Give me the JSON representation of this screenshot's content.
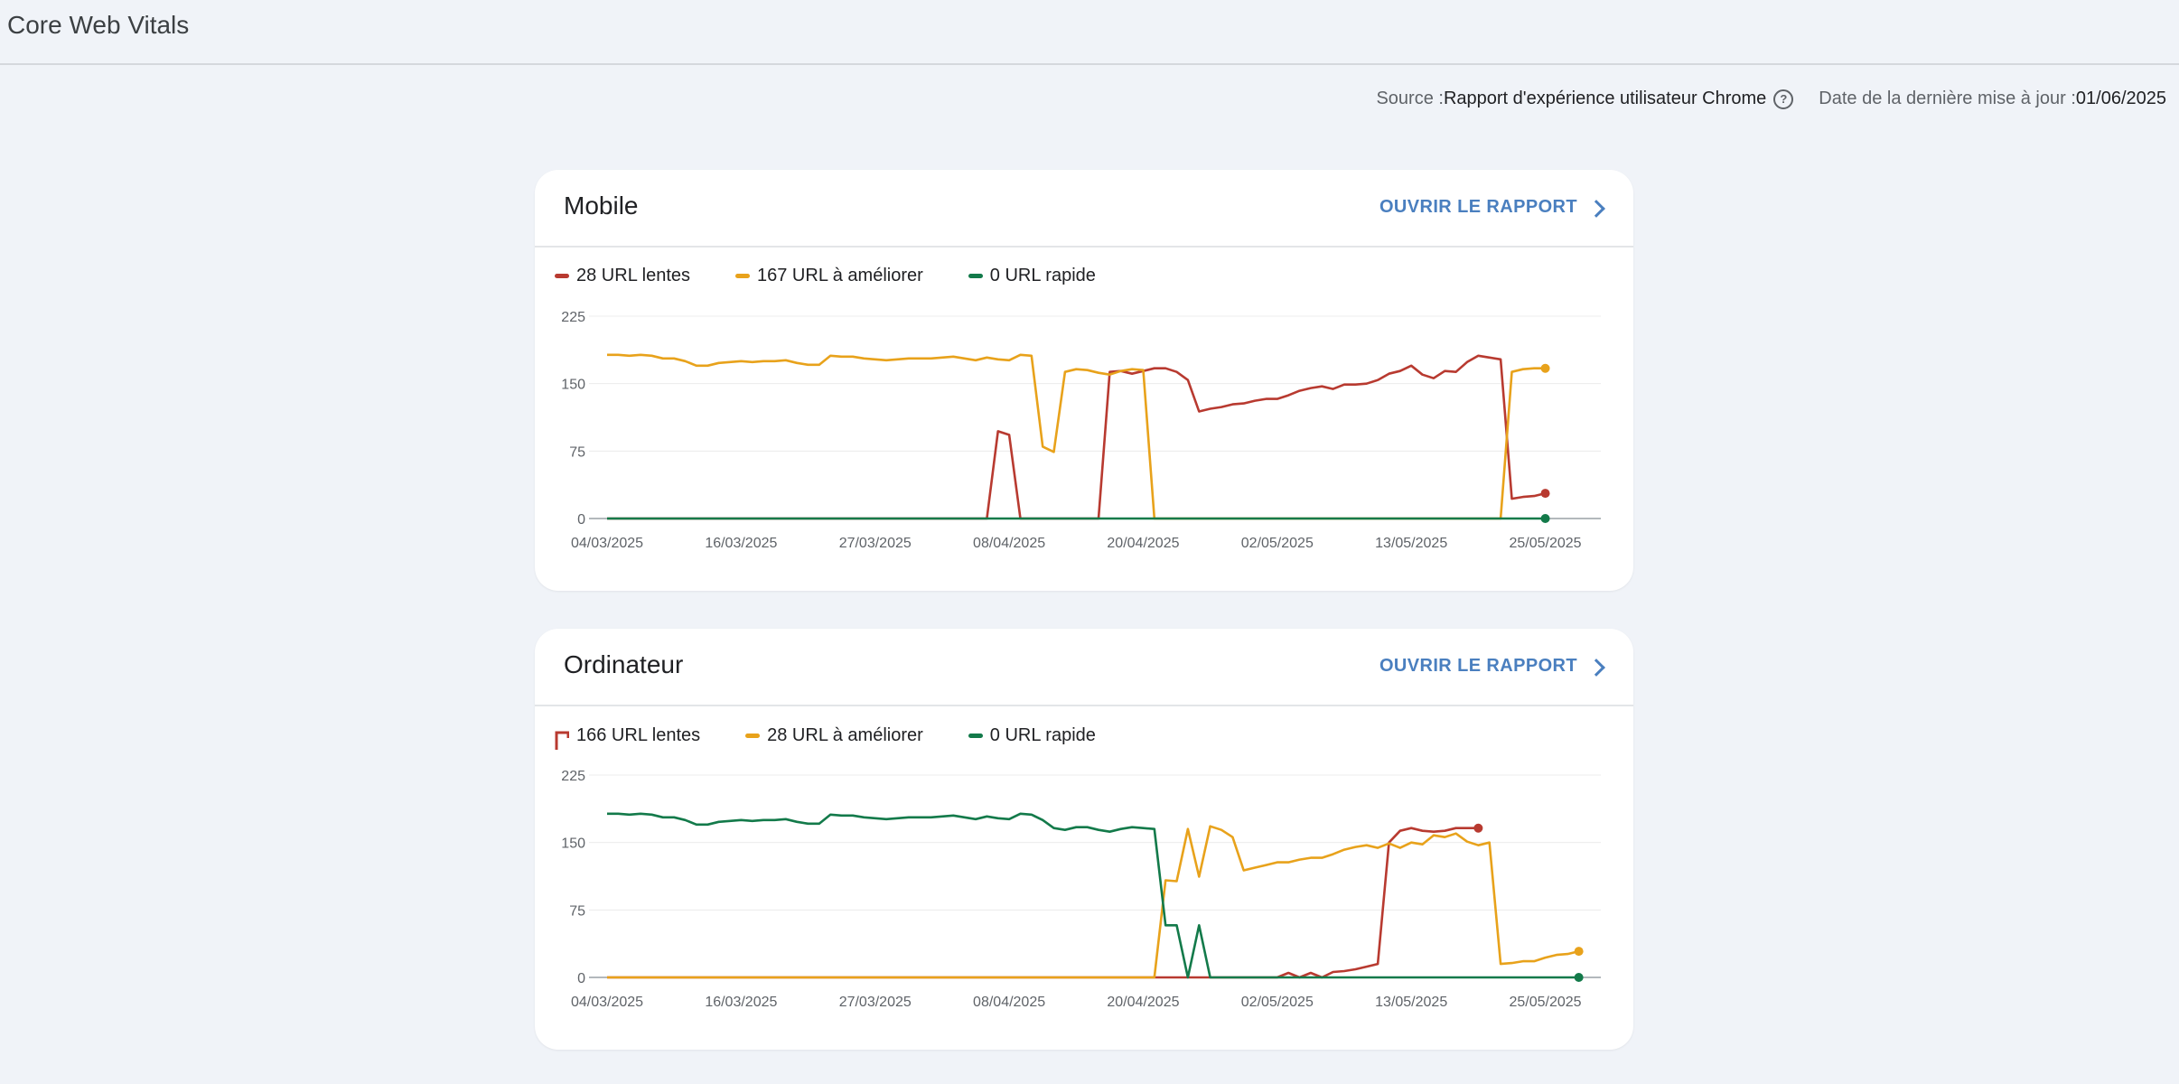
{
  "page": {
    "title": "Core Web Vitals",
    "source_label": "Source : ",
    "source_value": "Rapport d'expérience utilisateur Chrome",
    "help_icon": "help-circle-icon",
    "updated_label": "Date de la dernière mise à jour : ",
    "updated_value": "01/06/2025"
  },
  "colors": {
    "slow": "#b83a30",
    "improve": "#e8a21b",
    "fast": "#137a4a",
    "grid": "#ececec",
    "axis": "#9aa0a6"
  },
  "cards": [
    {
      "title": "Mobile",
      "open_report": "OUVRIR LE RAPPORT",
      "legend": [
        {
          "label": "28 URL lentes",
          "series": "slow"
        },
        {
          "label": "167 URL à améliorer",
          "series": "improve"
        },
        {
          "label": "0 URL rapide",
          "series": "fast"
        }
      ]
    },
    {
      "title": "Ordinateur",
      "open_report": "OUVRIR LE RAPPORT",
      "legend": [
        {
          "label": "166 URL lentes",
          "series": "slow"
        },
        {
          "label": "28 URL à améliorer",
          "series": "improve"
        },
        {
          "label": "0 URL rapide",
          "series": "fast"
        }
      ]
    }
  ],
  "chart_data": [
    {
      "type": "line",
      "x_start": "04/03/2025",
      "x_end": "31/05/2025",
      "x_tick_labels": [
        "04/03/2025",
        "16/03/2025",
        "27/03/2025",
        "08/04/2025",
        "20/04/2025",
        "02/05/2025",
        "13/05/2025",
        "25/05/2025"
      ],
      "y_ticks": [
        0,
        75,
        150,
        225
      ],
      "ylim": [
        0,
        225
      ],
      "grid": true,
      "legend_placement": "top-left",
      "series": [
        {
          "key": "slow",
          "name": "28 URL lentes",
          "points": [
            [
              0,
              0
            ],
            [
              34,
              0
            ],
            [
              35,
              97
            ],
            [
              36,
              93
            ],
            [
              37,
              0
            ],
            [
              44,
              0
            ],
            [
              45,
              163
            ],
            [
              46,
              164
            ],
            [
              47,
              161
            ],
            [
              48,
              164
            ],
            [
              49,
              167
            ],
            [
              50,
              167
            ],
            [
              51,
              163
            ],
            [
              52,
              154
            ],
            [
              53,
              119
            ],
            [
              54,
              122
            ],
            [
              55,
              124
            ],
            [
              56,
              127
            ],
            [
              57,
              128
            ],
            [
              58,
              131
            ],
            [
              59,
              133
            ],
            [
              60,
              133
            ],
            [
              61,
              137
            ],
            [
              62,
              142
            ],
            [
              63,
              145
            ],
            [
              64,
              147
            ],
            [
              65,
              144
            ],
            [
              66,
              149
            ],
            [
              67,
              149
            ],
            [
              68,
              150
            ],
            [
              69,
              154
            ],
            [
              70,
              161
            ],
            [
              71,
              164
            ],
            [
              72,
              170
            ],
            [
              73,
              160
            ],
            [
              74,
              156
            ],
            [
              75,
              164
            ],
            [
              76,
              163
            ],
            [
              77,
              174
            ],
            [
              78,
              181
            ],
            [
              79,
              179
            ],
            [
              80,
              177
            ],
            [
              81,
              22
            ],
            [
              82,
              24
            ],
            [
              83,
              25
            ],
            [
              84,
              28
            ]
          ]
        },
        {
          "key": "improve",
          "name": "167 URL à améliorer",
          "points": [
            [
              0,
              182
            ],
            [
              1,
              182
            ],
            [
              2,
              181
            ],
            [
              3,
              182
            ],
            [
              4,
              181
            ],
            [
              5,
              178
            ],
            [
              6,
              178
            ],
            [
              7,
              175
            ],
            [
              8,
              170
            ],
            [
              9,
              170
            ],
            [
              10,
              173
            ],
            [
              11,
              174
            ],
            [
              12,
              175
            ],
            [
              13,
              174
            ],
            [
              14,
              175
            ],
            [
              15,
              175
            ],
            [
              16,
              176
            ],
            [
              17,
              173
            ],
            [
              18,
              171
            ],
            [
              19,
              171
            ],
            [
              20,
              181
            ],
            [
              21,
              180
            ],
            [
              22,
              180
            ],
            [
              23,
              178
            ],
            [
              24,
              177
            ],
            [
              25,
              176
            ],
            [
              26,
              177
            ],
            [
              27,
              178
            ],
            [
              28,
              178
            ],
            [
              29,
              178
            ],
            [
              30,
              179
            ],
            [
              31,
              180
            ],
            [
              32,
              178
            ],
            [
              33,
              176
            ],
            [
              34,
              179
            ],
            [
              35,
              177
            ],
            [
              36,
              176
            ],
            [
              37,
              182
            ],
            [
              38,
              181
            ],
            [
              39,
              80
            ],
            [
              40,
              74
            ],
            [
              41,
              163
            ],
            [
              42,
              166
            ],
            [
              43,
              165
            ],
            [
              44,
              162
            ],
            [
              45,
              160
            ],
            [
              46,
              164
            ],
            [
              47,
              166
            ],
            [
              48,
              165
            ],
            [
              49,
              0
            ],
            [
              80,
              0
            ],
            [
              81,
              163
            ],
            [
              82,
              166
            ],
            [
              83,
              167
            ],
            [
              84,
              167
            ]
          ]
        },
        {
          "key": "fast",
          "name": "0 URL rapide",
          "points": [
            [
              0,
              0
            ],
            [
              84,
              0
            ]
          ]
        }
      ]
    },
    {
      "type": "line",
      "x_start": "04/03/2025",
      "x_end": "31/05/2025",
      "x_tick_labels": [
        "04/03/2025",
        "16/03/2025",
        "27/03/2025",
        "08/04/2025",
        "20/04/2025",
        "02/05/2025",
        "13/05/2025",
        "25/05/2025"
      ],
      "y_ticks": [
        0,
        75,
        150,
        225
      ],
      "ylim": [
        0,
        225
      ],
      "grid": true,
      "legend_placement": "top-left",
      "series": [
        {
          "key": "slow",
          "name": "166 URL lentes",
          "points": [
            [
              0,
              0
            ],
            [
              60,
              0
            ],
            [
              61,
              5
            ],
            [
              62,
              0
            ],
            [
              63,
              5
            ],
            [
              64,
              0
            ],
            [
              65,
              6
            ],
            [
              66,
              7
            ],
            [
              67,
              9
            ],
            [
              68,
              12
            ],
            [
              69,
              15
            ],
            [
              70,
              150
            ],
            [
              71,
              163
            ],
            [
              72,
              166
            ],
            [
              73,
              163
            ],
            [
              74,
              162
            ],
            [
              75,
              163
            ],
            [
              76,
              166
            ],
            [
              77,
              166
            ],
            [
              78,
              166
            ]
          ]
        },
        {
          "key": "improve",
          "name": "28 URL à améliorer",
          "points": [
            [
              0,
              0
            ],
            [
              49,
              0
            ],
            [
              50,
              108
            ],
            [
              51,
              107
            ],
            [
              52,
              165
            ],
            [
              53,
              112
            ],
            [
              54,
              168
            ],
            [
              55,
              164
            ],
            [
              56,
              156
            ],
            [
              57,
              119
            ],
            [
              58,
              122
            ],
            [
              59,
              125
            ],
            [
              60,
              128
            ],
            [
              61,
              128
            ],
            [
              62,
              131
            ],
            [
              63,
              133
            ],
            [
              64,
              133
            ],
            [
              65,
              137
            ],
            [
              66,
              142
            ],
            [
              67,
              145
            ],
            [
              68,
              147
            ],
            [
              69,
              144
            ],
            [
              70,
              149
            ],
            [
              71,
              144
            ],
            [
              72,
              150
            ],
            [
              73,
              148
            ],
            [
              74,
              158
            ],
            [
              75,
              156
            ],
            [
              76,
              160
            ],
            [
              77,
              151
            ],
            [
              78,
              147
            ],
            [
              79,
              150
            ],
            [
              80,
              15
            ],
            [
              81,
              16
            ],
            [
              82,
              18
            ],
            [
              83,
              18
            ],
            [
              84,
              22
            ],
            [
              85,
              25
            ],
            [
              86,
              26
            ],
            [
              87,
              29
            ]
          ]
        },
        {
          "key": "fast",
          "name": "0 URL rapide",
          "points": [
            [
              0,
              182
            ],
            [
              1,
              182
            ],
            [
              2,
              181
            ],
            [
              3,
              182
            ],
            [
              4,
              181
            ],
            [
              5,
              178
            ],
            [
              6,
              178
            ],
            [
              7,
              175
            ],
            [
              8,
              170
            ],
            [
              9,
              170
            ],
            [
              10,
              173
            ],
            [
              11,
              174
            ],
            [
              12,
              175
            ],
            [
              13,
              174
            ],
            [
              14,
              175
            ],
            [
              15,
              175
            ],
            [
              16,
              176
            ],
            [
              17,
              173
            ],
            [
              18,
              171
            ],
            [
              19,
              171
            ],
            [
              20,
              181
            ],
            [
              21,
              180
            ],
            [
              22,
              180
            ],
            [
              23,
              178
            ],
            [
              24,
              177
            ],
            [
              25,
              176
            ],
            [
              26,
              177
            ],
            [
              27,
              178
            ],
            [
              28,
              178
            ],
            [
              29,
              178
            ],
            [
              30,
              179
            ],
            [
              31,
              180
            ],
            [
              32,
              178
            ],
            [
              33,
              176
            ],
            [
              34,
              179
            ],
            [
              35,
              177
            ],
            [
              36,
              176
            ],
            [
              37,
              182
            ],
            [
              38,
              181
            ],
            [
              39,
              175
            ],
            [
              40,
              166
            ],
            [
              41,
              164
            ],
            [
              42,
              167
            ],
            [
              43,
              167
            ],
            [
              44,
              164
            ],
            [
              45,
              162
            ],
            [
              46,
              165
            ],
            [
              47,
              167
            ],
            [
              48,
              166
            ],
            [
              49,
              165
            ],
            [
              50,
              58
            ],
            [
              51,
              58
            ],
            [
              52,
              0
            ],
            [
              53,
              58
            ],
            [
              54,
              0
            ],
            [
              87,
              0
            ]
          ]
        }
      ]
    }
  ]
}
